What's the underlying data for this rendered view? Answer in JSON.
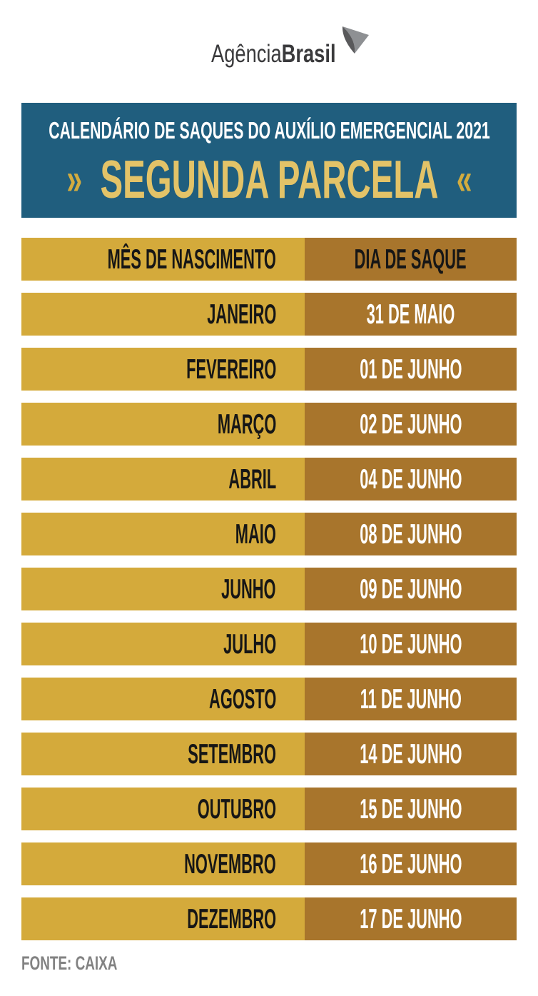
{
  "logo": {
    "name_regular": "Agência",
    "name_bold": "Brasil",
    "icon": "agencia-brasil-ribbon-icon",
    "text_color": "#3a3a3c",
    "icon_dark_color": "#59595b",
    "icon_light_color": "#8e9093"
  },
  "banner": {
    "title": "CALENDÁRIO DE SAQUES DO AUXÍLIO EMERGENCIAL 2021",
    "subtitle": "SEGUNDA PARCELA",
    "chevron_left": "»",
    "chevron_right": "«",
    "bg_color": "#205e7e",
    "title_color": "#ffffff",
    "subtitle_color": "#e3c368",
    "chevron_color": "#d2ac3f"
  },
  "table": {
    "header": {
      "month": "MÊS DE NASCIMENTO",
      "day": "DIA DE SAQUE"
    },
    "rows": [
      {
        "month": "JANEIRO",
        "day": "31 DE MAIO"
      },
      {
        "month": "FEVEREIRO",
        "day": "01 DE JUNHO"
      },
      {
        "month": "MARÇO",
        "day": "02 DE JUNHO"
      },
      {
        "month": "ABRIL",
        "day": "04 DE JUNHO"
      },
      {
        "month": "MAIO",
        "day": "08 DE JUNHO"
      },
      {
        "month": "JUNHO",
        "day": "09 DE JUNHO"
      },
      {
        "month": "JULHO",
        "day": "10 DE JUNHO"
      },
      {
        "month": "AGOSTO",
        "day": "11 DE JUNHO"
      },
      {
        "month": "SETEMBRO",
        "day": "14 DE JUNHO"
      },
      {
        "month": "OUTUBRO",
        "day": "15 DE JUNHO"
      },
      {
        "month": "NOVEMBRO",
        "day": "16 DE JUNHO"
      },
      {
        "month": "DEZEMBRO",
        "day": "17 DE JUNHO"
      }
    ],
    "colors": {
      "gold": "#d4aa3b",
      "bronze": "#a8752c",
      "dark_text": "#161616",
      "light_text": "#ffffff"
    }
  },
  "footer": {
    "source": "FONTE: CAIXA",
    "color": "#828282"
  },
  "chart_data": {
    "type": "table",
    "title": "CALENDÁRIO DE SAQUES DO AUXÍLIO EMERGENCIAL 2021 — SEGUNDA PARCELA",
    "columns": [
      "MÊS DE NASCIMENTO",
      "DIA DE SAQUE"
    ],
    "rows": [
      [
        "JANEIRO",
        "31 DE MAIO"
      ],
      [
        "FEVEREIRO",
        "01 DE JUNHO"
      ],
      [
        "MARÇO",
        "02 DE JUNHO"
      ],
      [
        "ABRIL",
        "04 DE JUNHO"
      ],
      [
        "MAIO",
        "08 DE JUNHO"
      ],
      [
        "JUNHO",
        "09 DE JUNHO"
      ],
      [
        "JULHO",
        "10 DE JUNHO"
      ],
      [
        "AGOSTO",
        "11 DE JUNHO"
      ],
      [
        "SETEMBRO",
        "14 DE JUNHO"
      ],
      [
        "OUTUBRO",
        "15 DE JUNHO"
      ],
      [
        "NOVEMBRO",
        "16 DE JUNHO"
      ],
      [
        "DEZEMBRO",
        "17 DE JUNHO"
      ]
    ],
    "source": "FONTE: CAIXA",
    "layout": "two-column calendar, gold month column (right-aligned text), bronze day column (centered white text)"
  }
}
